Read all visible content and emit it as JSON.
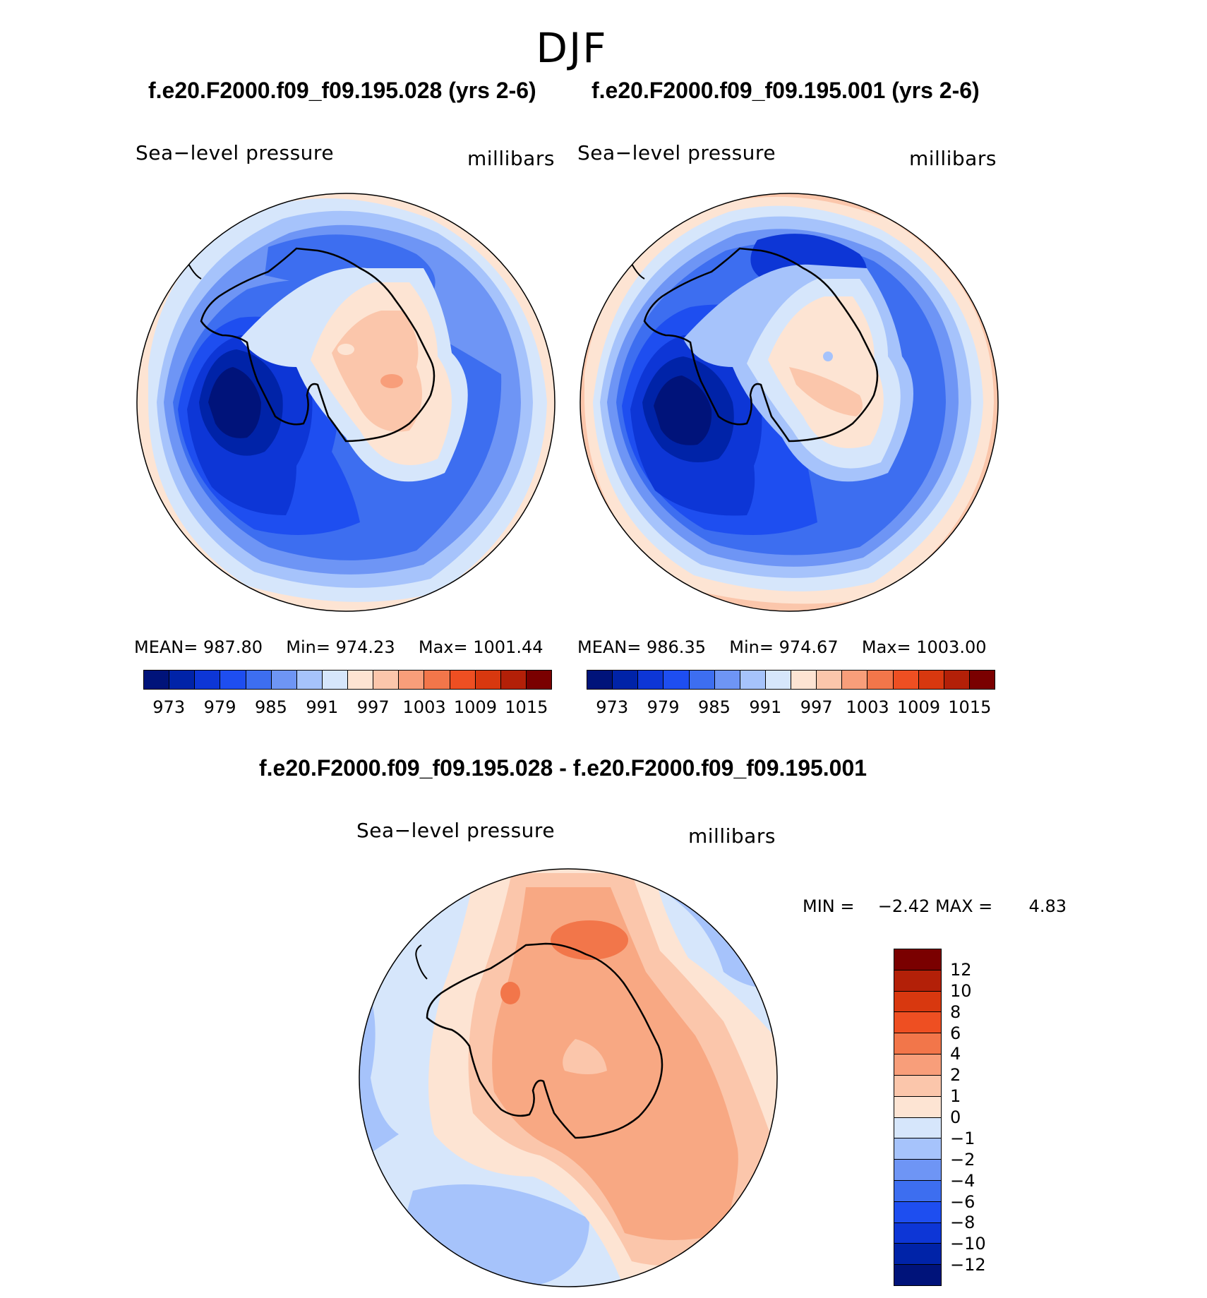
{
  "season": "DJF",
  "panels": [
    {
      "title": "f.e20.F2000.f09_f09.195.028 (yrs 2-6)",
      "variable": "Sea−level pressure",
      "units": "millibars",
      "stats": {
        "mean_label": "MEAN=",
        "mean": "987.80",
        "min_label": "Min=",
        "min": "974.23",
        "max_label": "Max=",
        "max": "1001.44"
      }
    },
    {
      "title": "f.e20.F2000.f09_f09.195.001 (yrs 2-6)",
      "variable": "Sea−level pressure",
      "units": "millibars",
      "stats": {
        "mean_label": "MEAN=",
        "mean": "986.35",
        "min_label": "Min=",
        "min": "974.67",
        "max_label": "Max=",
        "max": "1003.00"
      }
    }
  ],
  "abs_colorbar": {
    "colors": [
      "#00137a",
      "#0023a8",
      "#0d36d6",
      "#1e4ef0",
      "#3d6ef0",
      "#6e95f5",
      "#a6c3fb",
      "#d6e6fb",
      "#fde4d3",
      "#fbc6ab",
      "#f89e7a",
      "#f2764a",
      "#ee4f22",
      "#d8380f",
      "#b32008",
      "#7a0000"
    ],
    "labels": [
      "973",
      "979",
      "985",
      "991",
      "997",
      "1003",
      "1009",
      "1015"
    ]
  },
  "difference": {
    "title": "f.e20.F2000.f09_f09.195.028 - f.e20.F2000.f09_f09.195.001",
    "variable": "Sea−level pressure",
    "units": "millibars",
    "min_label": "MIN =",
    "min": "−2.42",
    "max_label": "MAX =",
    "max": "4.83",
    "colorbar": {
      "colors": [
        "#7a0000",
        "#b32008",
        "#d8380f",
        "#ee4f22",
        "#f2764a",
        "#f89e7a",
        "#fbc6ab",
        "#fde4d3",
        "#d6e6fb",
        "#a6c3fb",
        "#6e95f5",
        "#3d6ef0",
        "#1e4ef0",
        "#0d36d6",
        "#0023a8",
        "#00137a"
      ],
      "labels": [
        "12",
        "10",
        "8",
        "6",
        "4",
        "2",
        "1",
        "0",
        "−1",
        "−2",
        "−4",
        "−6",
        "−8",
        "−10",
        "−12"
      ]
    }
  },
  "map_colors": {
    "c971": "#00137a",
    "c975": "#0023a8",
    "c977": "#0d36d6",
    "c983": "#1e4ef0",
    "c987": "#3d6ef0",
    "c989": "#6e95f5",
    "c991": "#a6c3fb",
    "c993": "#d6e6fb",
    "c995": "#fde4d3",
    "c999": "#fbc6ab",
    "c1003": "#f89e7a",
    "d_neg2": "#a6c3fb",
    "d_neg1": "#d6e6fb",
    "d_0": "#fde4d3",
    "d_1": "#fbc6ab",
    "d_2": "#f8a883",
    "d_4": "#f2764a"
  }
}
